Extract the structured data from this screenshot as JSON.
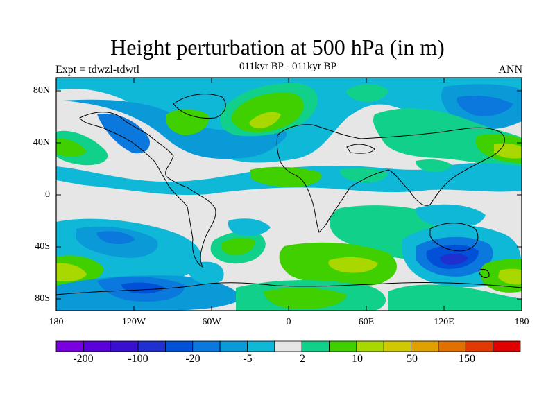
{
  "title": "Height perturbation at 500 hPa (in m)",
  "subtitle": "011kyr BP - 011kyr BP",
  "expt_label": "Expt = tdwzl-tdwtl",
  "season": "ANN",
  "lat_ticks": [
    "80N",
    "40N",
    "0",
    "40S",
    "80S"
  ],
  "lon_ticks": [
    "180",
    "120W",
    "60W",
    "0",
    "60E",
    "120E",
    "180"
  ],
  "colorbar": {
    "colors": [
      "#7a00e0",
      "#5a00d8",
      "#3a10d0",
      "#2030d0",
      "#0050d8",
      "#0a78dc",
      "#0a9ad8",
      "#10b8d8",
      "#e6e6e6",
      "#10d08a",
      "#40d000",
      "#a8d800",
      "#d0c800",
      "#e0a000",
      "#e07000",
      "#e03a00",
      "#e00000"
    ],
    "labels": [
      "-200",
      "-100",
      "-20",
      "-5",
      "2",
      "10",
      "50",
      "150"
    ]
  },
  "map_colors": {
    "background": "#e6e6e6",
    "neg_light": "#10b8d8",
    "neg_mid": "#0a9ad8",
    "neg_strong": "#0a78dc",
    "neg_deep": "#0050d8",
    "pos_light": "#10d08a",
    "pos_mid": "#40d000",
    "pos_strong": "#a8d800"
  }
}
